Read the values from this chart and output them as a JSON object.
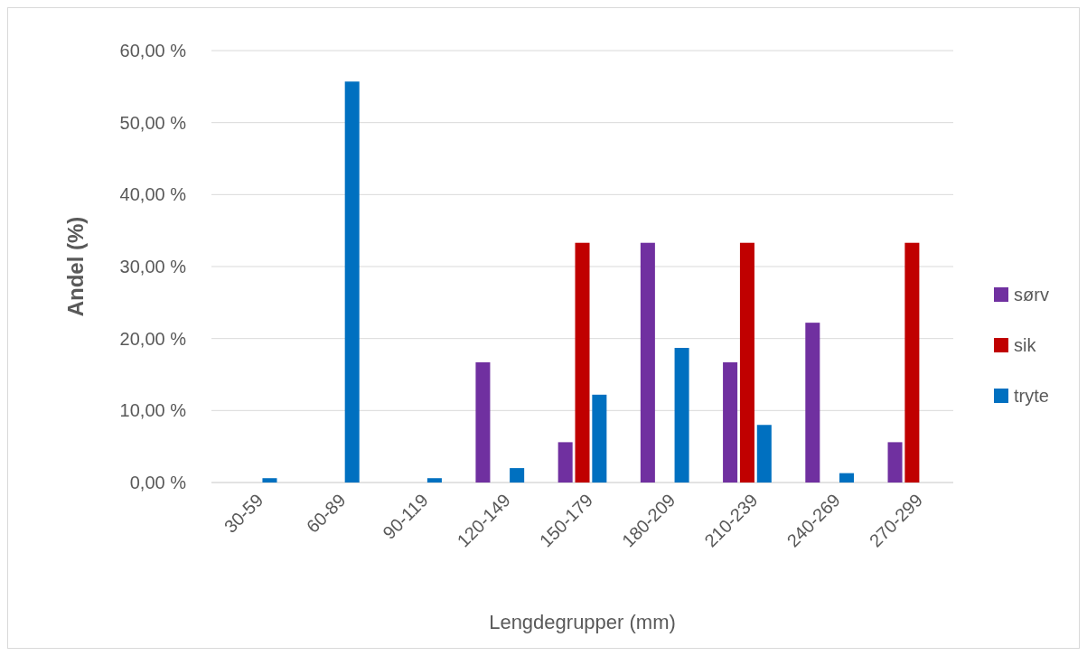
{
  "chart_data": {
    "type": "bar",
    "xlabel": "Lengdegrupper (mm)",
    "ylabel": "Andel (%)",
    "categories": [
      "30-59",
      "60-89",
      "90-119",
      "120-149",
      "150-179",
      "180-209",
      "210-239",
      "240-269",
      "270-299"
    ],
    "series": [
      {
        "name": "sørv",
        "color": "#7030a0",
        "values": [
          0,
          0,
          0,
          16.7,
          5.6,
          33.3,
          16.7,
          22.2,
          5.6
        ]
      },
      {
        "name": "sik",
        "color": "#c00000",
        "values": [
          0,
          0,
          0,
          0,
          33.3,
          0,
          33.3,
          0,
          33.3
        ]
      },
      {
        "name": "tryte",
        "color": "#0070c0",
        "values": [
          0.6,
          55.7,
          0.6,
          2.0,
          12.2,
          18.7,
          8.0,
          1.3,
          0
        ]
      }
    ],
    "ylim": [
      0,
      60
    ],
    "yticks": [
      {
        "value": 0,
        "label": "0,00 %"
      },
      {
        "value": 10,
        "label": "10,00 %"
      },
      {
        "value": 20,
        "label": "20,00 %"
      },
      {
        "value": 30,
        "label": "30,00 %"
      },
      {
        "value": 40,
        "label": "40,00 %"
      },
      {
        "value": 50,
        "label": "50,00 %"
      },
      {
        "value": 60,
        "label": "60,00 %"
      }
    ],
    "grid": "y",
    "legend": "right"
  }
}
